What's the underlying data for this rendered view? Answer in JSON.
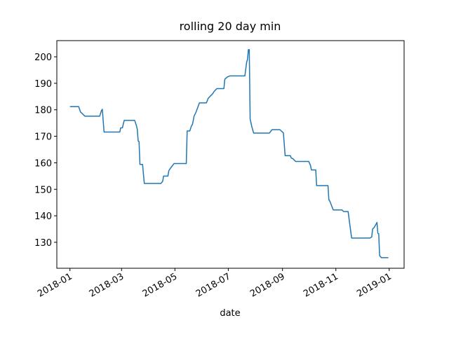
{
  "chart_data": {
    "type": "line",
    "title": "rolling 20 day min",
    "x_label": "date",
    "x": [
      "2018-01-01",
      "2018-01-11",
      "2018-01-13",
      "2018-01-15",
      "2018-01-18",
      "2018-02-04",
      "2018-02-06",
      "2018-02-07",
      "2018-02-09",
      "2018-02-27",
      "2018-02-28",
      "2018-03-02",
      "2018-03-04",
      "2018-03-16",
      "2018-03-18",
      "2018-03-19",
      "2018-03-20",
      "2018-03-21",
      "2018-03-22",
      "2018-03-25",
      "2018-03-27",
      "2018-04-15",
      "2018-04-17",
      "2018-04-18",
      "2018-04-23",
      "2018-04-24",
      "2018-04-26",
      "2018-04-30",
      "2018-05-14",
      "2018-05-15",
      "2018-05-18",
      "2018-05-20",
      "2018-05-21",
      "2018-05-23",
      "2018-05-25",
      "2018-05-29",
      "2018-06-06",
      "2018-06-08",
      "2018-06-10",
      "2018-06-13",
      "2018-06-15",
      "2018-06-18",
      "2018-06-26",
      "2018-06-27",
      "2018-06-30",
      "2018-07-03",
      "2018-07-20",
      "2018-07-22",
      "2018-07-23",
      "2018-07-24",
      "2018-07-25",
      "2018-07-26",
      "2018-07-28",
      "2018-07-30",
      "2018-08-17",
      "2018-08-20",
      "2018-08-29",
      "2018-09-02",
      "2018-09-04",
      "2018-09-10",
      "2018-09-11",
      "2018-09-13",
      "2018-09-16",
      "2018-10-01",
      "2018-10-03",
      "2018-10-04",
      "2018-10-09",
      "2018-10-10",
      "2018-10-23",
      "2018-10-24",
      "2018-10-25",
      "2018-10-29",
      "2018-11-08",
      "2018-11-10",
      "2018-11-15",
      "2018-11-19",
      "2018-12-10",
      "2018-12-12",
      "2018-12-13",
      "2018-12-15",
      "2018-12-18",
      "2018-12-19",
      "2018-12-20",
      "2018-12-21",
      "2018-12-23",
      "2018-12-31"
    ],
    "series": [
      {
        "color": "#1f77b4",
        "values": [
          181.2,
          181.2,
          179.2,
          178.6,
          177.6,
          177.6,
          179.7,
          180.2,
          171.6,
          171.6,
          173.2,
          173.2,
          176,
          176,
          174,
          172.6,
          168.2,
          168,
          159.4,
          159.4,
          152.2,
          152.2,
          153,
          155,
          155,
          157,
          158,
          159.7,
          159.7,
          172,
          172,
          174,
          174.4,
          177.7,
          179,
          182.6,
          182.6,
          184.3,
          185,
          186,
          187,
          188,
          188,
          191.5,
          192.4,
          192.8,
          192.8,
          198,
          199,
          202.7,
          202.7,
          176.5,
          173.5,
          171.2,
          171.2,
          172.5,
          172.5,
          171.3,
          162.7,
          162.7,
          161.8,
          161.5,
          160.5,
          160.5,
          159,
          157.3,
          157.3,
          151.4,
          151.4,
          146,
          145.6,
          142.2,
          142.2,
          141.6,
          141.6,
          131.6,
          131.6,
          132,
          135,
          135.7,
          137.5,
          133.4,
          133.2,
          125,
          124.2,
          124.2
        ]
      }
    ],
    "xlim": [
      "2017-12-17",
      "2019-01-18"
    ],
    "xticks": [
      {
        "value": "2018-01-01",
        "label": "2018-01"
      },
      {
        "value": "2018-03-01",
        "label": "2018-03"
      },
      {
        "value": "2018-05-01",
        "label": "2018-05"
      },
      {
        "value": "2018-07-01",
        "label": "2018-07"
      },
      {
        "value": "2018-09-01",
        "label": "2018-09"
      },
      {
        "value": "2018-11-01",
        "label": "2018-11"
      },
      {
        "value": "2019-01-01",
        "label": "2019-01"
      }
    ],
    "ylim": [
      120.2,
      206.1
    ],
    "yticks": [
      130,
      140,
      150,
      160,
      170,
      180,
      190,
      200
    ]
  }
}
